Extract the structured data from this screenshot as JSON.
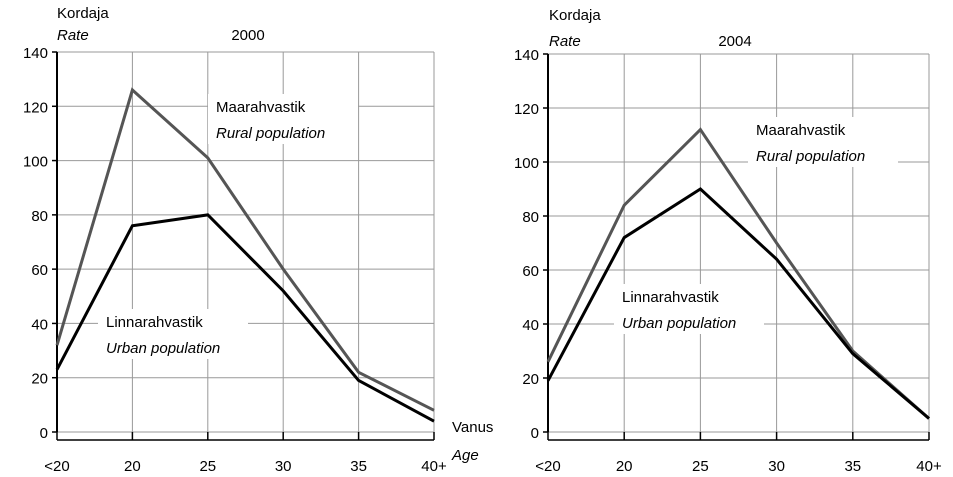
{
  "chart_data": [
    {
      "type": "line",
      "title": "2000",
      "y_label": "Kordaja",
      "y_label_en": "Rate",
      "x_label": "Vanus",
      "x_label_en": "Age",
      "categories": [
        "<20",
        "20",
        "25",
        "30",
        "35",
        "40+"
      ],
      "series": [
        {
          "name": "Maarahvastik",
          "name_en": "Rural population",
          "color": "#555555",
          "values": [
            32,
            126,
            101,
            60,
            22,
            8
          ]
        },
        {
          "name": "Linnarahvastik",
          "name_en": "Urban population",
          "color": "#000000",
          "values": [
            23,
            76,
            80,
            52,
            19,
            4
          ]
        }
      ],
      "ylim": [
        0,
        140
      ],
      "yticks": [
        0,
        20,
        40,
        60,
        80,
        100,
        120,
        140
      ],
      "grid": true
    },
    {
      "type": "line",
      "title": "2004",
      "y_label": "Kordaja",
      "y_label_en": "Rate",
      "categories": [
        "<20",
        "20",
        "25",
        "30",
        "35",
        "40+"
      ],
      "series": [
        {
          "name": "Maarahvastik",
          "name_en": "Rural population",
          "color": "#555555",
          "values": [
            26,
            84,
            112,
            70,
            30,
            5
          ]
        },
        {
          "name": "Linnarahvastik",
          "name_en": "Urban population",
          "color": "#000000",
          "values": [
            19,
            72,
            90,
            64,
            29,
            5
          ]
        }
      ],
      "ylim": [
        0,
        140
      ],
      "yticks": [
        0,
        20,
        40,
        60,
        80,
        100,
        120,
        140
      ],
      "grid": true
    }
  ]
}
